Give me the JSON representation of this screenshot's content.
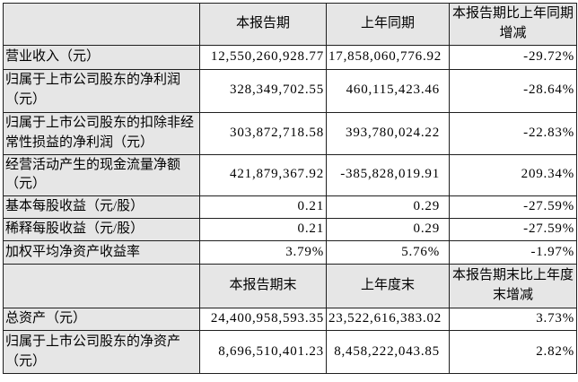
{
  "document": {
    "colors": {
      "header_bg": "#e6e6e6",
      "label_bg": "#e6e6e6",
      "data_bg": "#ffffff",
      "border": "#1f1f1f",
      "text": "#000000"
    },
    "period_section": {
      "col_headers": {
        "current": "本报告期",
        "prior": "上年同期",
        "change": "本报告期比上年同期增减"
      },
      "rows": [
        {
          "label": "营业收入（元）",
          "current": "12,550,260,928.77",
          "prior": "17,858,060,776.92",
          "change": "-29.72%"
        },
        {
          "label": "归属于上市公司股东的净利润（元）",
          "current": "328,349,702.55",
          "prior": "460,115,423.46",
          "change": "-28.64%"
        },
        {
          "label": "归属于上市公司股东的扣除非经常性损益的净利润（元）",
          "current": "303,872,718.58",
          "prior": "393,780,024.22",
          "change": "-22.83%"
        },
        {
          "label": "经营活动产生的现金流量净额（元）",
          "current": "421,879,367.92",
          "prior": "-385,828,019.91",
          "change": "209.34%"
        },
        {
          "label": "基本每股收益（元/股）",
          "current": "0.21",
          "prior": "0.29",
          "change": "-27.59%"
        },
        {
          "label": "稀释每股收益（元/股）",
          "current": "0.21",
          "prior": "0.29",
          "change": "-27.59%"
        },
        {
          "label": "加权平均净资产收益率",
          "current": "3.79%",
          "prior": "5.76%",
          "change": "-1.97%"
        }
      ]
    },
    "yearend_section": {
      "col_headers": {
        "current": "本报告期末",
        "prior": "上年度末",
        "change": "本报告期末比上年度末增减"
      },
      "rows": [
        {
          "label": "总资产（元）",
          "current": "24,400,958,593.35",
          "prior": "23,522,616,383.02",
          "change": "3.73%"
        },
        {
          "label": "归属于上市公司股东的净资产（元）",
          "current": "8,696,510,401.23",
          "prior": "8,458,222,043.85",
          "change": "2.82%"
        }
      ]
    }
  }
}
